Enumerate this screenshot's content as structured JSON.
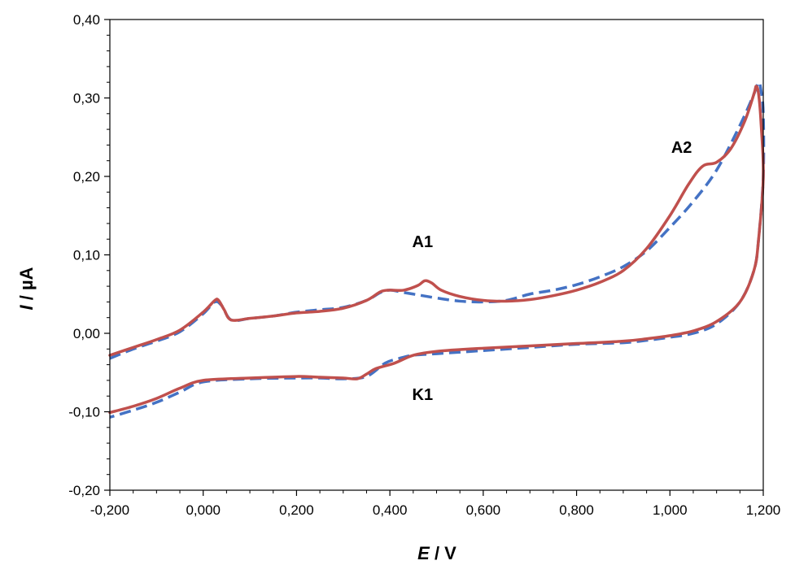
{
  "chart_data": {
    "type": "line",
    "title": "",
    "xlabel_italic": "E",
    "xlabel_rest": " / V",
    "ylabel_italic": "I",
    "ylabel_rest": " / µA",
    "xlim": [
      -0.2,
      1.2
    ],
    "ylim": [
      -0.2,
      0.4
    ],
    "x_ticks": [
      -0.2,
      0.0,
      0.2,
      0.4,
      0.6,
      0.8,
      1.0,
      1.2
    ],
    "x_tick_labels": [
      "-0,200",
      "0,000",
      "0,200",
      "0,400",
      "0,600",
      "0,800",
      "1,000",
      "1,200"
    ],
    "y_ticks": [
      -0.2,
      -0.1,
      0.0,
      0.1,
      0.2,
      0.3,
      0.4
    ],
    "y_tick_labels": [
      "-0,20",
      "-0,10",
      "0,00",
      "0,10",
      "0,20",
      "0,30",
      "0,40"
    ],
    "grid": false,
    "legend": "none",
    "annotations": [
      {
        "text": "A1",
        "x": 0.47,
        "y": 0.11
      },
      {
        "text": "A2",
        "x": 1.025,
        "y": 0.23
      },
      {
        "text": "K1",
        "x": 0.47,
        "y": -0.085
      }
    ],
    "series": [
      {
        "color": "#4472C4",
        "dash": true,
        "points": [
          [
            -0.2,
            -0.032
          ],
          [
            -0.15,
            -0.02
          ],
          [
            -0.1,
            -0.01
          ],
          [
            -0.05,
            0.002
          ],
          [
            0.0,
            0.025
          ],
          [
            0.025,
            0.04
          ],
          [
            0.04,
            0.035
          ],
          [
            0.06,
            0.017
          ],
          [
            0.1,
            0.019
          ],
          [
            0.15,
            0.022
          ],
          [
            0.2,
            0.027
          ],
          [
            0.25,
            0.03
          ],
          [
            0.3,
            0.033
          ],
          [
            0.35,
            0.042
          ],
          [
            0.38,
            0.052
          ],
          [
            0.4,
            0.055
          ],
          [
            0.43,
            0.052
          ],
          [
            0.46,
            0.049
          ],
          [
            0.5,
            0.045
          ],
          [
            0.55,
            0.041
          ],
          [
            0.6,
            0.04
          ],
          [
            0.65,
            0.042
          ],
          [
            0.7,
            0.05
          ],
          [
            0.75,
            0.055
          ],
          [
            0.8,
            0.062
          ],
          [
            0.85,
            0.072
          ],
          [
            0.9,
            0.085
          ],
          [
            0.95,
            0.105
          ],
          [
            1.0,
            0.135
          ],
          [
            1.05,
            0.168
          ],
          [
            1.1,
            0.208
          ],
          [
            1.15,
            0.265
          ],
          [
            1.18,
            0.305
          ],
          [
            1.19,
            0.32
          ],
          [
            1.195,
            0.31
          ],
          [
            1.2,
            0.28
          ],
          [
            1.2,
            0.2
          ],
          [
            1.19,
            0.12
          ],
          [
            1.18,
            0.08
          ],
          [
            1.15,
            0.04
          ],
          [
            1.1,
            0.012
          ],
          [
            1.05,
            0.0
          ],
          [
            1.0,
            -0.005
          ],
          [
            0.95,
            -0.009
          ],
          [
            0.9,
            -0.012
          ],
          [
            0.8,
            -0.014
          ],
          [
            0.7,
            -0.018
          ],
          [
            0.6,
            -0.022
          ],
          [
            0.5,
            -0.026
          ],
          [
            0.45,
            -0.028
          ],
          [
            0.42,
            -0.032
          ],
          [
            0.39,
            -0.038
          ],
          [
            0.35,
            -0.055
          ],
          [
            0.3,
            -0.058
          ],
          [
            0.25,
            -0.057
          ],
          [
            0.2,
            -0.057
          ],
          [
            0.1,
            -0.058
          ],
          [
            0.0,
            -0.062
          ],
          [
            -0.05,
            -0.075
          ],
          [
            -0.1,
            -0.088
          ],
          [
            -0.15,
            -0.098
          ],
          [
            -0.2,
            -0.107
          ]
        ]
      },
      {
        "color": "#C0504D",
        "dash": false,
        "points": [
          [
            -0.2,
            -0.028
          ],
          [
            -0.15,
            -0.018
          ],
          [
            -0.1,
            -0.008
          ],
          [
            -0.05,
            0.004
          ],
          [
            0.0,
            0.027
          ],
          [
            0.025,
            0.042
          ],
          [
            0.033,
            0.042
          ],
          [
            0.045,
            0.03
          ],
          [
            0.06,
            0.017
          ],
          [
            0.1,
            0.019
          ],
          [
            0.15,
            0.022
          ],
          [
            0.2,
            0.026
          ],
          [
            0.25,
            0.028
          ],
          [
            0.3,
            0.032
          ],
          [
            0.35,
            0.042
          ],
          [
            0.38,
            0.053
          ],
          [
            0.4,
            0.055
          ],
          [
            0.43,
            0.055
          ],
          [
            0.46,
            0.061
          ],
          [
            0.475,
            0.067
          ],
          [
            0.49,
            0.064
          ],
          [
            0.51,
            0.055
          ],
          [
            0.55,
            0.047
          ],
          [
            0.6,
            0.042
          ],
          [
            0.65,
            0.041
          ],
          [
            0.7,
            0.043
          ],
          [
            0.75,
            0.048
          ],
          [
            0.8,
            0.055
          ],
          [
            0.85,
            0.065
          ],
          [
            0.9,
            0.08
          ],
          [
            0.95,
            0.108
          ],
          [
            1.0,
            0.15
          ],
          [
            1.04,
            0.19
          ],
          [
            1.07,
            0.213
          ],
          [
            1.1,
            0.218
          ],
          [
            1.13,
            0.235
          ],
          [
            1.16,
            0.27
          ],
          [
            1.18,
            0.305
          ],
          [
            1.185,
            0.315
          ],
          [
            1.19,
            0.305
          ],
          [
            1.195,
            0.27
          ],
          [
            1.2,
            0.2
          ],
          [
            1.19,
            0.12
          ],
          [
            1.18,
            0.08
          ],
          [
            1.15,
            0.04
          ],
          [
            1.1,
            0.015
          ],
          [
            1.05,
            0.003
          ],
          [
            1.0,
            -0.003
          ],
          [
            0.95,
            -0.007
          ],
          [
            0.9,
            -0.01
          ],
          [
            0.8,
            -0.013
          ],
          [
            0.7,
            -0.016
          ],
          [
            0.6,
            -0.019
          ],
          [
            0.5,
            -0.023
          ],
          [
            0.45,
            -0.028
          ],
          [
            0.41,
            -0.038
          ],
          [
            0.37,
            -0.045
          ],
          [
            0.35,
            -0.052
          ],
          [
            0.33,
            -0.058
          ],
          [
            0.3,
            -0.057
          ],
          [
            0.25,
            -0.056
          ],
          [
            0.2,
            -0.055
          ],
          [
            0.1,
            -0.057
          ],
          [
            0.0,
            -0.06
          ],
          [
            -0.05,
            -0.07
          ],
          [
            -0.1,
            -0.083
          ],
          [
            -0.15,
            -0.093
          ],
          [
            -0.2,
            -0.101
          ]
        ]
      }
    ]
  }
}
